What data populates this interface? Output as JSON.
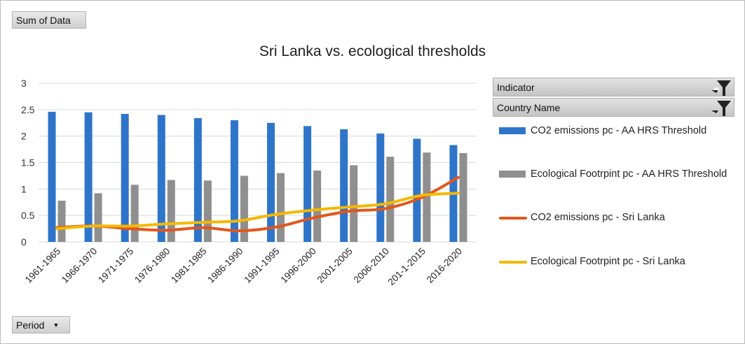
{
  "pivot": {
    "sum_label": "Sum of Data",
    "period_label": "Period",
    "indicator_label": "Indicator",
    "country_label": "Country Name"
  },
  "chart_data": {
    "type": "bar",
    "title": "Sri Lanka vs. ecological thresholds",
    "xlabel": "",
    "ylabel": "",
    "ylim": [
      0,
      3
    ],
    "yticks": [
      "0",
      "0.5",
      "1",
      "1.5",
      "2",
      "2.5",
      "3"
    ],
    "grid": true,
    "legend_position": "right",
    "categories": [
      "1961-1965",
      "1966-1970",
      "1971-1975",
      "1976-1980",
      "1981-1985",
      "1986-1990",
      "1991-1995",
      "1996-2000",
      "2001-2005",
      "2006-2010",
      "201-1-2015",
      "2016-2020"
    ],
    "series": [
      {
        "name": "CO2 emissions pc - AA HRS Threshold",
        "kind": "bar",
        "color": "#2e75c9",
        "values": [
          2.46,
          2.45,
          2.42,
          2.4,
          2.34,
          2.3,
          2.25,
          2.19,
          2.13,
          2.05,
          1.95,
          1.83
        ]
      },
      {
        "name": "Ecological Footrpint pc - AA HRS Threshold",
        "kind": "bar",
        "color": "#8f8f8f",
        "values": [
          0.78,
          0.92,
          1.08,
          1.17,
          1.16,
          1.25,
          1.3,
          1.35,
          1.45,
          1.61,
          1.69,
          1.68
        ]
      },
      {
        "name": "CO2 emissions pc - Sri Lanka",
        "kind": "line",
        "color": "#e2561c",
        "values": [
          0.27,
          0.3,
          0.25,
          0.22,
          0.27,
          0.21,
          0.28,
          0.45,
          0.58,
          0.63,
          0.84,
          1.22
        ]
      },
      {
        "name": "Ecological Footrpint pc - Sri Lanka",
        "kind": "line",
        "color": "#f5b800",
        "values": [
          0.25,
          0.3,
          0.3,
          0.34,
          0.37,
          0.4,
          0.52,
          0.6,
          0.66,
          0.72,
          0.88,
          0.92
        ]
      }
    ]
  }
}
